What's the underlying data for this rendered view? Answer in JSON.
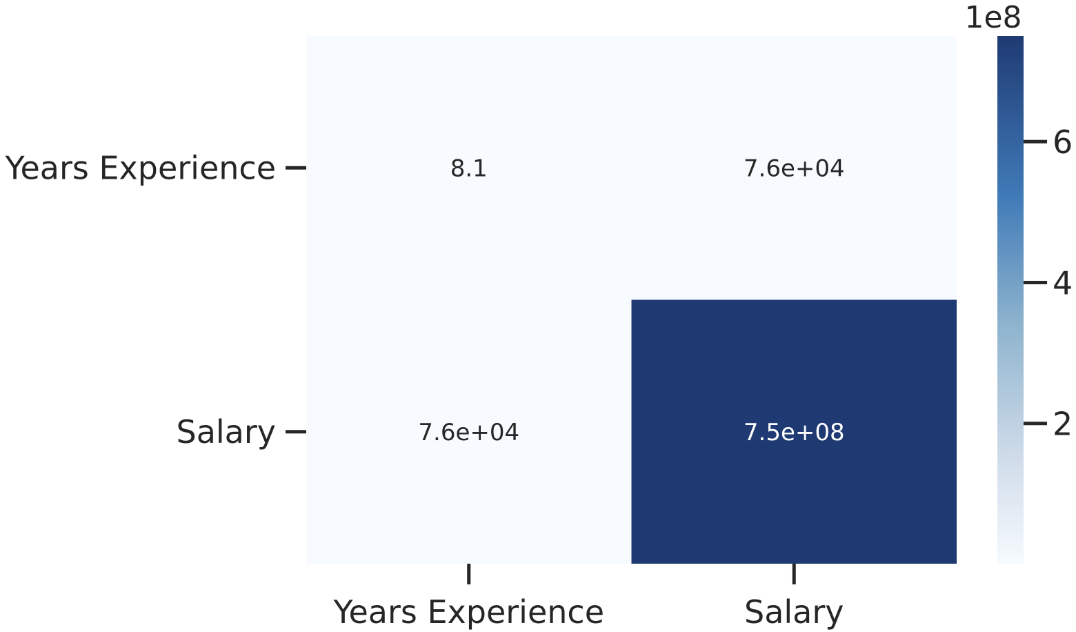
{
  "chart_data": {
    "type": "heatmap",
    "title": "",
    "xlabel": "",
    "ylabel": "",
    "rows": [
      "Years Experience",
      "Salary"
    ],
    "columns": [
      "Years Experience",
      "Salary"
    ],
    "values": [
      [
        8.1,
        76000
      ],
      [
        76000,
        750000000
      ]
    ],
    "cell_labels": [
      [
        "8.1",
        "7.6e+04"
      ],
      [
        "7.6e+04",
        "7.5e+08"
      ]
    ],
    "colormap": "Blues",
    "color_range": [
      8.1,
      750000000
    ],
    "colorbar": {
      "multiplier_label": "1e8",
      "ticks": [
        200000000,
        400000000,
        600000000
      ],
      "tick_labels": [
        "2",
        "4",
        "6"
      ],
      "colors": {
        "low": "#f7fbff",
        "mid": "#6aaed6",
        "high": "#1f3a73"
      }
    }
  }
}
